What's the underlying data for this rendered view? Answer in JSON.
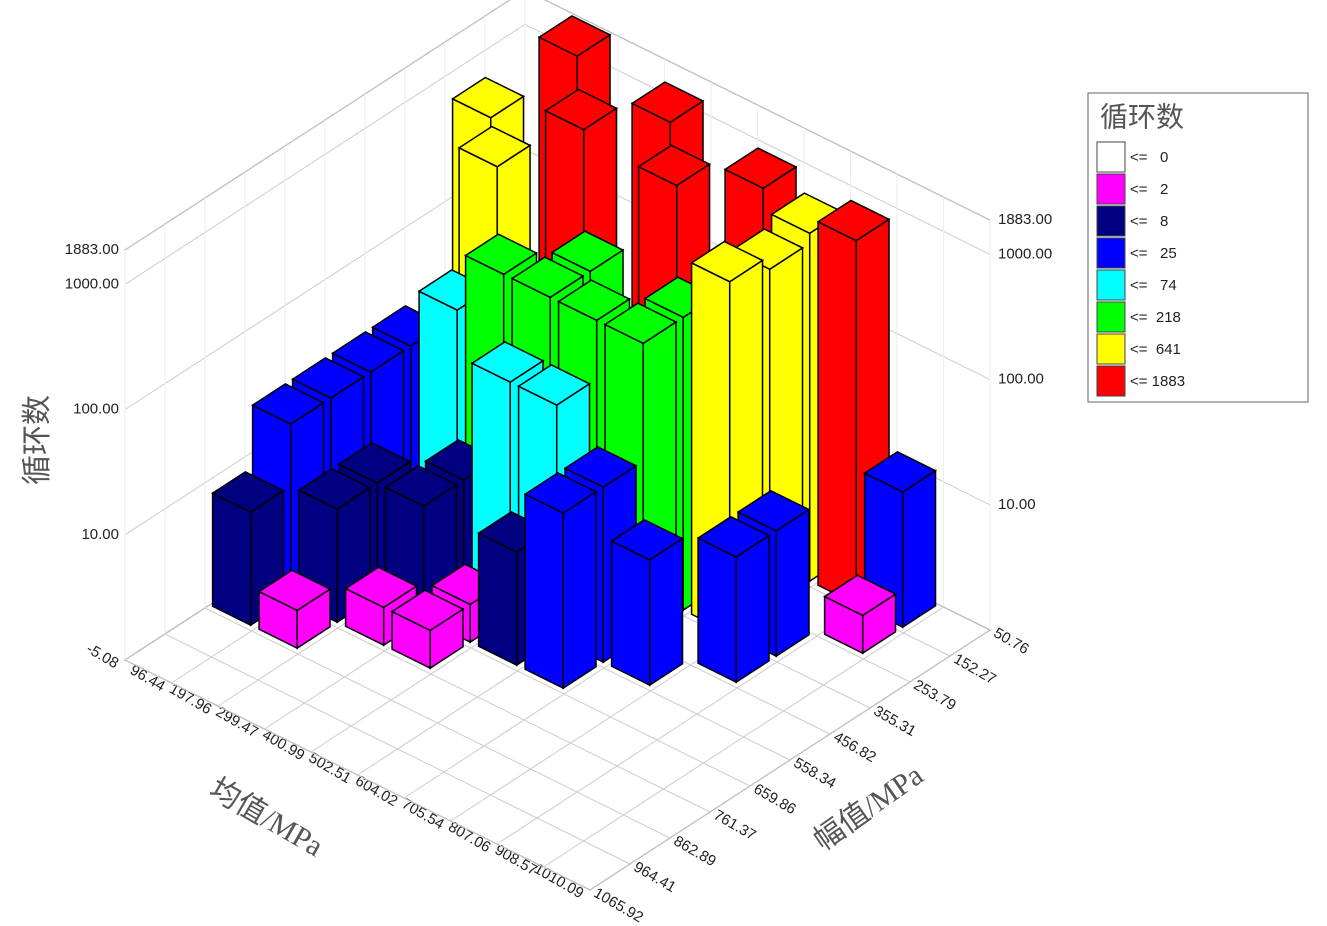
{
  "chart_data": {
    "type": "bar3d",
    "x_label": "均值/MPa",
    "y_label": "幅值/MPa",
    "z_label": "循环数",
    "xticks": [
      -5.08,
      96.44,
      197.96,
      299.47,
      400.99,
      502.51,
      604.02,
      705.54,
      807.06,
      908.57,
      1010.09
    ],
    "xlim": [
      -5.08,
      1010.09
    ],
    "yticks": [
      50.76,
      152.27,
      253.79,
      355.31,
      456.82,
      558.34,
      659.86,
      761.37,
      862.89,
      964.41,
      1065.92
    ],
    "ylim": [
      50.76,
      1065.92
    ],
    "zlim": [
      1,
      1883
    ],
    "zscale": "log",
    "zticks": [
      {
        "value": 1883,
        "label": "1883.00"
      },
      {
        "value": 1000,
        "label": "1000.00"
      },
      {
        "value": 100,
        "label": "100.00"
      },
      {
        "value": 10,
        "label": "10.00"
      }
    ],
    "values": [
      [
        null,
        1883,
        null,
        1300,
        null,
        900,
        600,
        800,
        12,
        null
      ],
      [
        641,
        null,
        1200,
        null,
        1000,
        null,
        500,
        null,
        2,
        null
      ],
      [
        null,
        641,
        null,
        218,
        null,
        218,
        641,
        10,
        null,
        null
      ],
      [
        25,
        74,
        218,
        218,
        218,
        218,
        null,
        10,
        null,
        null
      ],
      [
        25,
        null,
        8,
        74,
        74,
        25,
        10,
        null,
        null,
        null
      ],
      [
        25,
        8,
        8,
        2,
        8,
        25,
        null,
        null,
        null,
        null
      ],
      [
        25,
        8,
        2,
        2,
        null,
        null,
        null,
        null,
        null,
        null
      ],
      [
        8,
        2,
        null,
        null,
        null,
        null,
        null,
        null,
        null,
        null
      ],
      [
        null,
        null,
        null,
        null,
        null,
        null,
        null,
        null,
        null,
        null
      ],
      [
        null,
        null,
        null,
        null,
        null,
        null,
        null,
        null,
        null,
        null
      ]
    ],
    "legend": {
      "title": "循环数",
      "entries": [
        {
          "value": 0,
          "label": "<=   0",
          "color": "#ffffff"
        },
        {
          "value": 2,
          "label": "<=   2",
          "color": "#ff00ff"
        },
        {
          "value": 8,
          "label": "<=   8",
          "color": "#000080"
        },
        {
          "value": 25,
          "label": "<=   25",
          "color": "#0000ff"
        },
        {
          "value": 74,
          "label": "<=   74",
          "color": "#00ffff"
        },
        {
          "value": 218,
          "label": "<=  218",
          "color": "#00ff00"
        },
        {
          "value": 641,
          "label": "<=  641",
          "color": "#ffff00"
        },
        {
          "value": 1883,
          "label": "<= 1883",
          "color": "#ff0000"
        }
      ]
    }
  }
}
